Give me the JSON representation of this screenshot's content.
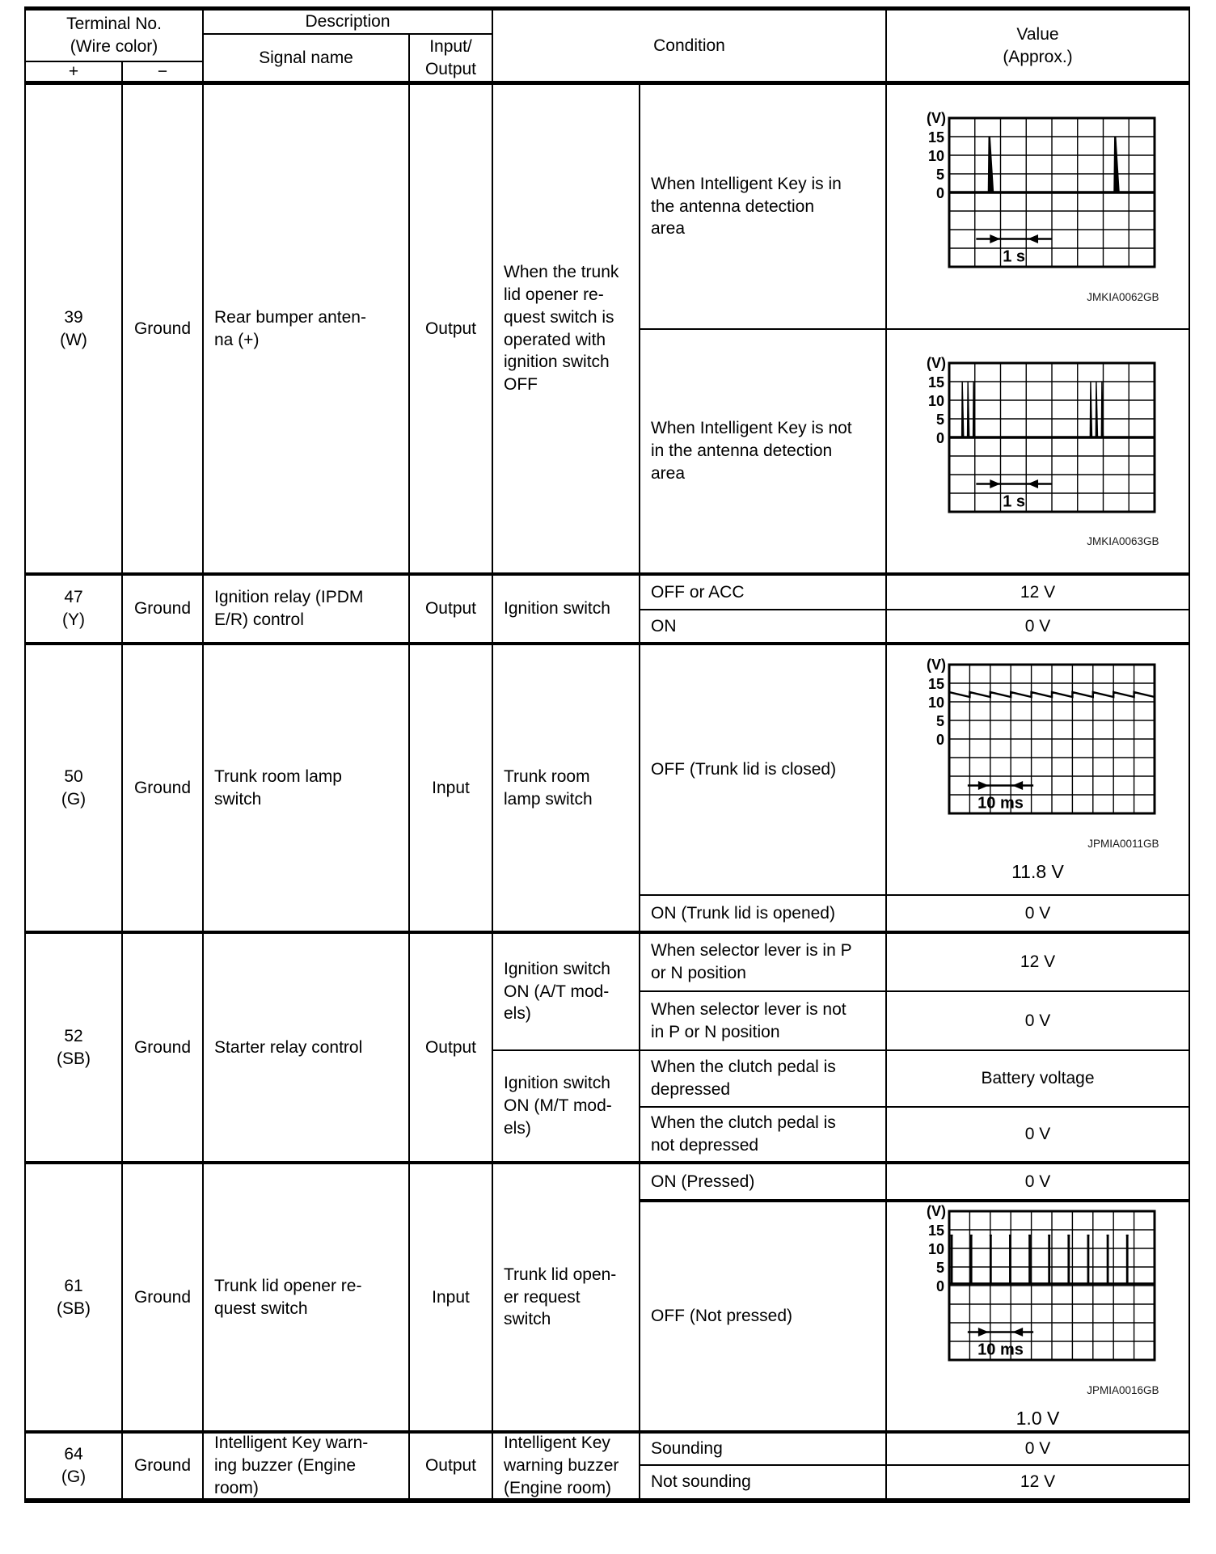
{
  "header": {
    "terminal_no": "Terminal No.\n(Wire color)",
    "plus": "+",
    "minus": "−",
    "description": "Description",
    "signal_name": "Signal name",
    "input_output": "Input/\nOutput",
    "condition": "Condition",
    "value": "Value\n(Approx.)"
  },
  "rows": [
    {
      "terminal": "39\n(W)",
      "wire": "Ground",
      "signal": "Rear bumper anten-\nna (+)",
      "io": "Output",
      "context": "When the trunk\nlid opener re-\nquest switch is\noperated with\nignition switch\nOFF",
      "conditions": [
        "When Intelligent Key is in\nthe antenna detection\narea",
        "When Intelligent Key is not\nin the antenna detection\narea"
      ]
    },
    {
      "terminal": "47\n(Y)",
      "wire": "Ground",
      "signal": "Ignition relay (IPDM\nE/R) control",
      "io": "Output",
      "context": "Ignition switch",
      "conditions": [
        "OFF or ACC",
        "ON"
      ],
      "values": [
        "12 V",
        "0 V"
      ]
    },
    {
      "terminal": "50\n(G)",
      "wire": "Ground",
      "signal": "Trunk room lamp\nswitch",
      "io": "Input",
      "context": "Trunk room\nlamp switch",
      "conditions": [
        "OFF (Trunk lid is closed)",
        "ON (Trunk lid is opened)"
      ],
      "values": [
        null,
        "0 V"
      ]
    },
    {
      "terminal": "52\n(SB)",
      "wire": "Ground",
      "signal": "Starter relay control",
      "io": "Output",
      "contexts": [
        "Ignition switch\nON (A/T mod-\nels)",
        "Ignition switch\nON (M/T mod-\nels)"
      ],
      "conditions": [
        "When selector lever is in P\nor N position",
        "When selector lever is not\nin P or N position",
        "When the clutch pedal is\ndepressed",
        "When the clutch pedal is\nnot depressed"
      ],
      "values": [
        "12 V",
        "0 V",
        "Battery voltage",
        "0 V"
      ]
    },
    {
      "terminal": "61\n(SB)",
      "wire": "Ground",
      "signal": "Trunk lid opener re-\nquest switch",
      "io": "Input",
      "context": "Trunk lid open-\ner request\nswitch",
      "conditions": [
        "ON (Pressed)",
        "OFF (Not pressed)"
      ],
      "values": [
        "0 V",
        null
      ]
    },
    {
      "terminal": "64\n(G)",
      "wire": "Ground",
      "signal": "Intelligent Key warn-\ning buzzer (Engine\nroom)",
      "io": "Output",
      "context": "Intelligent Key\nwarning buzzer\n(Engine room)",
      "conditions": [
        "Sounding",
        "Not sounding"
      ],
      "values": [
        "0 V",
        "12 V"
      ]
    }
  ],
  "waveforms": {
    "wf1": {
      "type": "oscilloscope",
      "pattern": "single-spikes",
      "cols": 8,
      "rows": 8,
      "y_unit": "(V)",
      "y_labels": [
        15,
        10,
        5,
        0
      ],
      "spike_cols": [
        1.55,
        6.45
      ],
      "spike_top_v": 15,
      "base_v": 0,
      "arrow": {
        "from": 1.05,
        "to": 4.0
      },
      "time_label": "1 s",
      "caption": "JMKIA0062GB"
    },
    "wf2": {
      "type": "oscilloscope",
      "pattern": "spike-clusters",
      "cols": 8,
      "rows": 8,
      "y_unit": "(V)",
      "y_labels": [
        15,
        10,
        5,
        0
      ],
      "cluster_cols": [
        [
          0.5,
          0.72,
          0.94
        ],
        [
          5.5,
          5.72,
          5.94
        ]
      ],
      "spike_top_v": 15,
      "base_v": 0,
      "arrow": {
        "from": 1.05,
        "to": 4.0
      },
      "time_label": "1 s",
      "caption": "JMKIA0063GB"
    },
    "wf3": {
      "type": "oscilloscope",
      "pattern": "sawtooth",
      "cols": 10,
      "rows": 8,
      "y_unit": "(V)",
      "y_labels": [
        15,
        10,
        5,
        0
      ],
      "level_high_v": 12.6,
      "level_low_v": 11.3,
      "arrow": {
        "from": 0.9,
        "to": 4.1
      },
      "time_label": "10 ms",
      "caption": "JPMIA0011GB",
      "value_text": "11.8 V"
    },
    "wf4": {
      "type": "oscilloscope",
      "pattern": "pulse-train",
      "cols": 10,
      "rows": 8,
      "y_unit": "(V)",
      "y_labels": [
        15,
        10,
        5,
        0
      ],
      "pulse_cols": [
        0.12,
        1.07,
        2.02,
        2.97,
        3.92,
        4.87,
        5.82,
        6.77,
        7.72,
        8.67
      ],
      "pulse_top_v": 13.5,
      "pulse_base_v": 0.5,
      "arrow": {
        "from": 0.9,
        "to": 4.1
      },
      "time_label": "10 ms",
      "caption": "JPMIA0016GB",
      "value_text": "1.0 V"
    }
  }
}
